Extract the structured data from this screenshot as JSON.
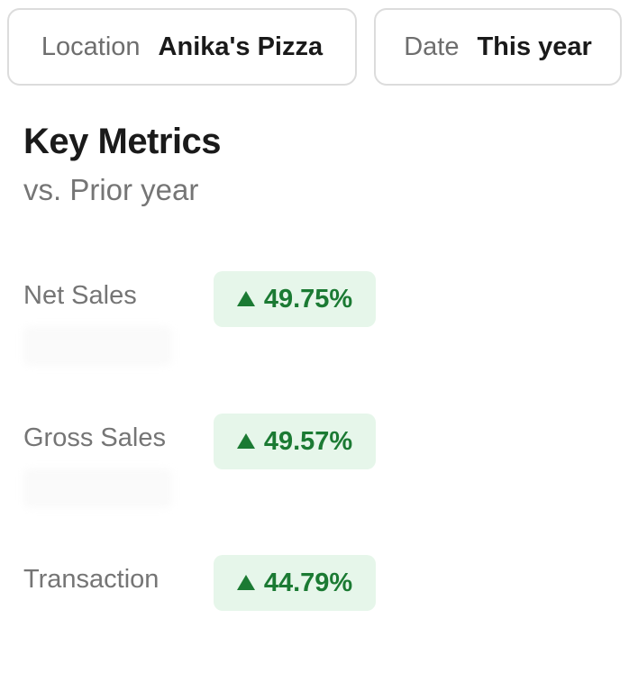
{
  "filters": {
    "location": {
      "label": "Location",
      "value": "Anika's Pizza"
    },
    "date": {
      "label": "Date",
      "value": "This year"
    }
  },
  "header": {
    "title": "Key Metrics",
    "subtitle": "vs. Prior year"
  },
  "metrics": [
    {
      "label": "Net Sales",
      "change": "49.75%",
      "direction": "up"
    },
    {
      "label": "Gross Sales",
      "change": "49.57%",
      "direction": "up"
    },
    {
      "label": "Transaction",
      "change": "44.79%",
      "direction": "up"
    }
  ],
  "colors": {
    "positive": "#1b7a33",
    "positive_bg": "#e6f6ea",
    "muted_text": "#757575",
    "border": "#dcdcdc"
  },
  "icons": {
    "trend_up": "triangle-up-icon"
  }
}
